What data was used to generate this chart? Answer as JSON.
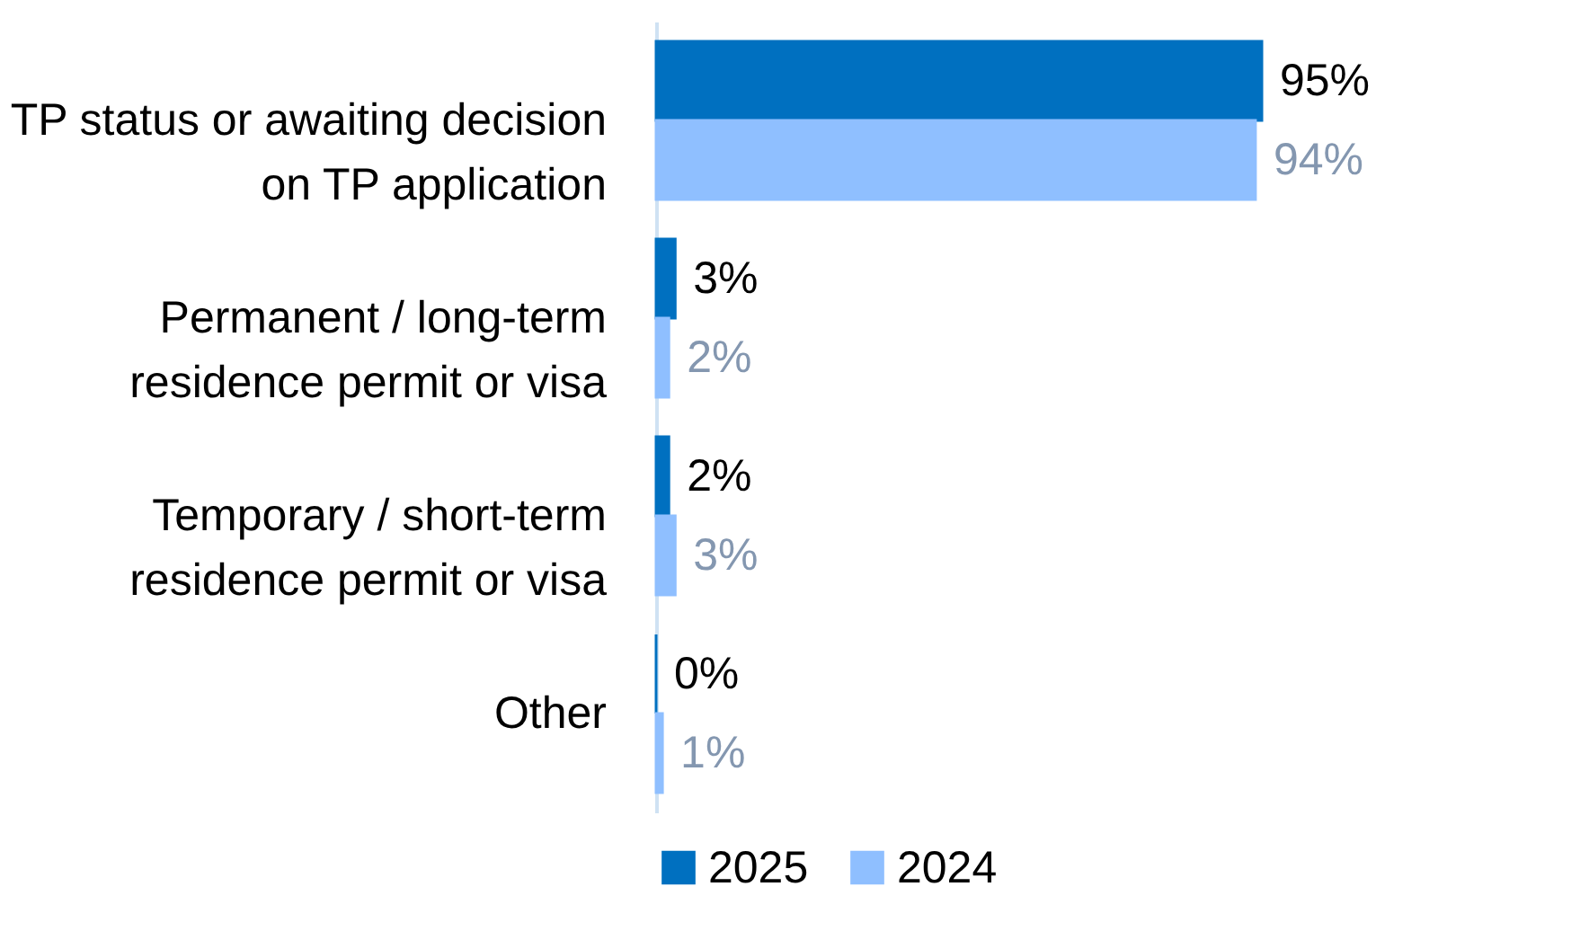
{
  "chart_data": {
    "type": "bar",
    "orientation": "horizontal",
    "categories": [
      "TP status or awaiting decision on TP application",
      "Permanent / long-term residence permit or visa",
      "Temporary / short-term residence permit or visa",
      "Other"
    ],
    "series": [
      {
        "name": "2025",
        "color": "#0070c0",
        "values": [
          95,
          3,
          2,
          0
        ],
        "value_labels": [
          "95%",
          "3%",
          "2%",
          "0%"
        ]
      },
      {
        "name": "2024",
        "color": "#8fbfff",
        "values": [
          94,
          2,
          3,
          1
        ],
        "value_labels": [
          "94%",
          "2%",
          "3%",
          "1%"
        ]
      }
    ],
    "legend": "bottom",
    "grid": false
  }
}
